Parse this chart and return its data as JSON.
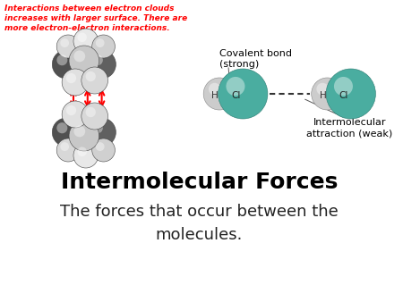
{
  "bg_color": "#ffffff",
  "title": "Intermolecular Forces",
  "subtitle": "The forces that occur between the\nmolecules.",
  "red_text": "Interactions between electron clouds\nincreases with larger surface. There are\nmore electron-electron interactions.",
  "covalent_label": "Covalent bond\n(strong)",
  "intermolecular_label": "Intermolecular\nattraction (weak)",
  "h_label": "H",
  "cl_label": "Cl",
  "teal_color": "#4aada0",
  "h_color": "#cccccc",
  "title_fontsize": 18,
  "subtitle_fontsize": 13,
  "red_fontsize": 6.5,
  "label_fontsize": 8
}
